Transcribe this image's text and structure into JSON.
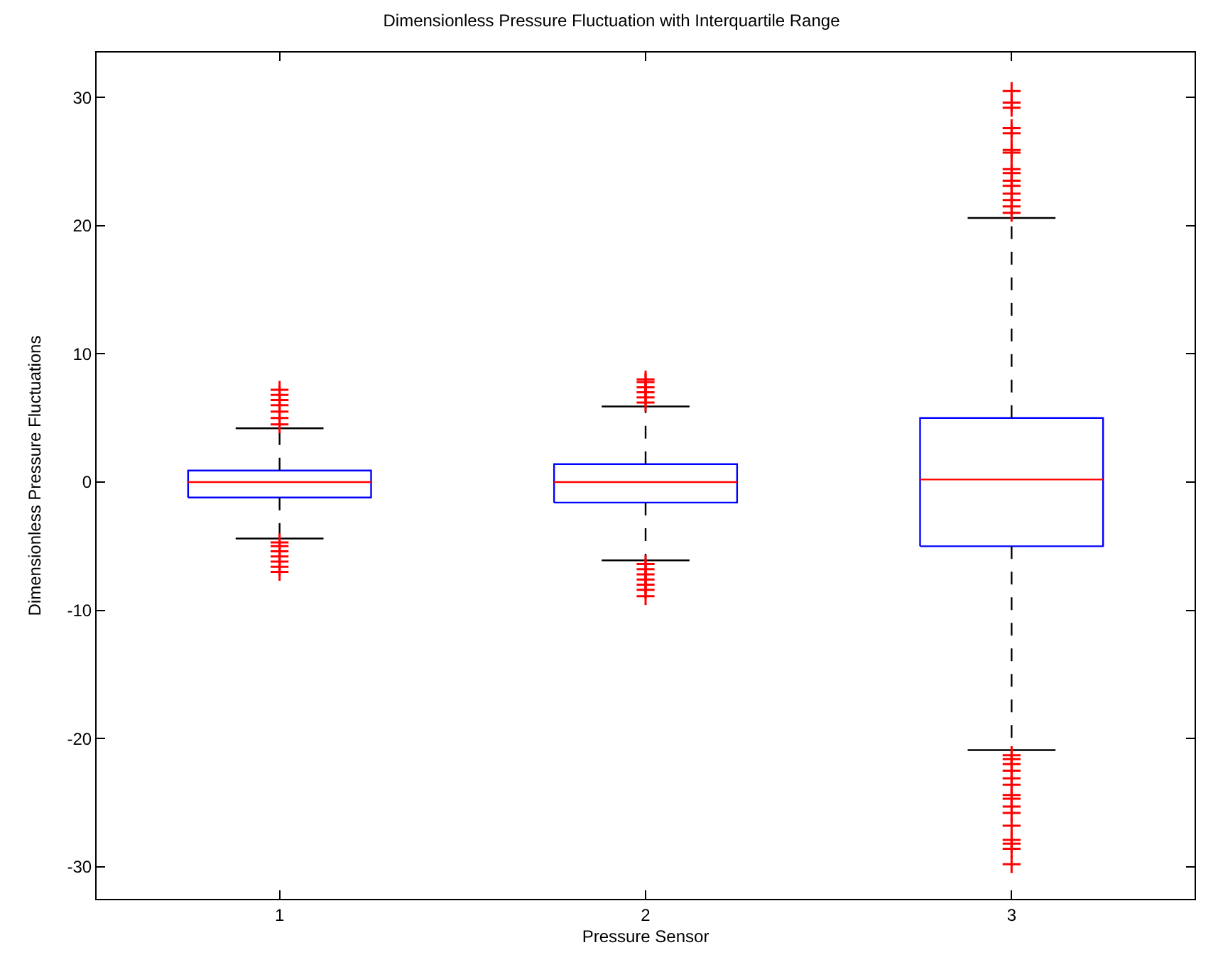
{
  "chart_data": {
    "type": "box",
    "title": "Dimensionless Pressure Fluctuation with Interquartile Range",
    "xlabel": "Pressure Sensor",
    "ylabel": "Dimensionless Pressure Fluctuations",
    "categories": [
      "1",
      "2",
      "3"
    ],
    "color": "#0000ff",
    "boxes": [
      {
        "low": -4.4,
        "q1": -1.2,
        "median": 0,
        "q3": 0.9,
        "high": 4.2,
        "outliers": [
          4.5,
          5.0,
          5.5,
          6.0,
          6.4,
          6.8,
          7.2,
          -4.7,
          -5.0,
          -5.4,
          -5.8,
          -6.2,
          -6.6,
          -7.0
        ]
      },
      {
        "low": -6.1,
        "q1": -1.6,
        "median": 0,
        "q3": 1.4,
        "high": 5.9,
        "outliers": [
          6.2,
          6.6,
          7.0,
          7.4,
          7.8,
          8.0,
          -6.4,
          -6.8,
          -7.2,
          -7.6,
          -8.0,
          -8.4,
          -8.9
        ]
      },
      {
        "low": -20.9,
        "q1": -5.0,
        "median": 0.2,
        "q3": 5.0,
        "high": 20.6,
        "outliers": [
          21.0,
          21.5,
          22.0,
          22.5,
          23.1,
          23.5,
          24.1,
          24.4,
          25.7,
          25.9,
          27.2,
          27.6,
          29.2,
          29.6,
          30.5,
          -21.3,
          -21.6,
          -22.0,
          -22.5,
          -23.1,
          -23.6,
          -24.4,
          -24.7,
          -25.3,
          -25.8,
          -26.8,
          -27.9,
          -28.2,
          -28.6,
          -29.8
        ]
      }
    ],
    "ylim": [
      -32.5,
      33.5
    ],
    "yticks": [
      -30,
      -20,
      -10,
      0,
      10,
      20,
      30
    ],
    "legend": false,
    "marker": "cross"
  }
}
